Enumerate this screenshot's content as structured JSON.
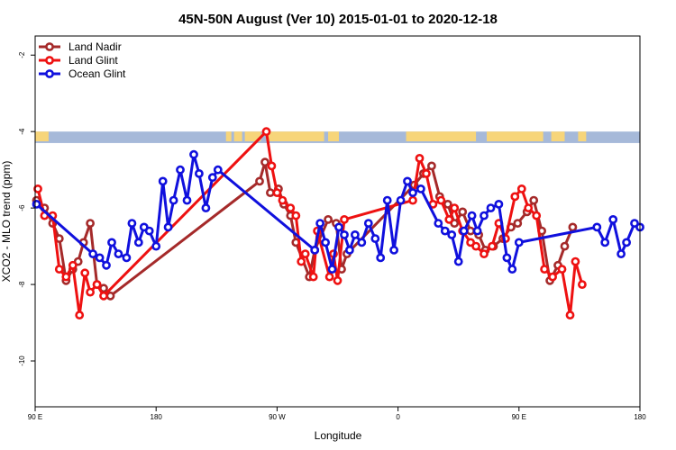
{
  "chart_data": {
    "type": "line",
    "title": "45N-50N August (Ver 10)   2015-01-01 to 2020-12-18",
    "xlabel": "Longitude",
    "ylabel": "XCO2 - MLO trend (ppm)",
    "x_ticks": [
      {
        "value": 90,
        "label": "90 E"
      },
      {
        "value": 180,
        "label": "180"
      },
      {
        "value": 270,
        "label": "90 W"
      },
      {
        "value": 360,
        "label": "0"
      },
      {
        "value": 450,
        "label": "90 E"
      },
      {
        "value": 540,
        "label": "180"
      }
    ],
    "y_ticks": [
      -2,
      -4,
      -6,
      -8,
      -10
    ],
    "xlim": [
      90,
      540
    ],
    "ylim": [
      -11.2,
      -1.5
    ],
    "grid": false,
    "legend": {
      "placement": "top-left"
    },
    "land_band": {
      "y_range": [
        -4.3,
        -4.0
      ],
      "land_color": "#f7d57a",
      "ocean_color": "#a6b9d9"
    },
    "series": [
      {
        "name": "Land Nadir",
        "color": "#a52a2a",
        "x": [
          91,
          97,
          103,
          108,
          113,
          118,
          122,
          126,
          131,
          136,
          141,
          146,
          257,
          261,
          265,
          271,
          275,
          280,
          284,
          294,
          298,
          308,
          314,
          318,
          322,
          372,
          379,
          385,
          391,
          397,
          402,
          408,
          414,
          420,
          425,
          431,
          438,
          444,
          449,
          456,
          461,
          467,
          473,
          479,
          484,
          490
        ],
        "y": [
          -5.8,
          -6.0,
          -6.4,
          -6.8,
          -7.9,
          -7.6,
          -7.4,
          -6.9,
          -6.4,
          -8.0,
          -8.1,
          -8.3,
          -5.3,
          -4.8,
          -5.6,
          -5.5,
          -5.9,
          -6.2,
          -6.9,
          -7.8,
          -7.1,
          -6.3,
          -6.4,
          -7.6,
          -7.2,
          -5.4,
          -5.1,
          -4.9,
          -5.7,
          -5.9,
          -6.4,
          -6.1,
          -6.6,
          -6.7,
          -7.1,
          -7.0,
          -6.8,
          -6.5,
          -6.4,
          -6.1,
          -5.8,
          -6.6,
          -7.9,
          -7.5,
          -7.0,
          -6.5
        ],
        "note": "values read off chart"
      },
      {
        "name": "Land Glint",
        "color": "#ee1111",
        "x": [
          92,
          97,
          103,
          108,
          113,
          118,
          123,
          127,
          131,
          136,
          141,
          262,
          266,
          270,
          274,
          280,
          284,
          288,
          291,
          297,
          300,
          309,
          312,
          315,
          320,
          371,
          376,
          381,
          386,
          392,
          398,
          402,
          408,
          414,
          418,
          424,
          430,
          435,
          440,
          447,
          452,
          457,
          463,
          469,
          475,
          482,
          488,
          492,
          497
        ],
        "y": [
          -5.5,
          -6.2,
          -6.2,
          -7.6,
          -7.8,
          -7.5,
          -8.8,
          -7.7,
          -8.2,
          -8.0,
          -8.3,
          -4.0,
          -4.9,
          -5.6,
          -5.8,
          -6.0,
          -6.2,
          -7.4,
          -7.2,
          -7.8,
          -6.6,
          -7.8,
          -7.2,
          -7.9,
          -6.3,
          -5.8,
          -4.7,
          -5.1,
          -5.9,
          -5.8,
          -6.3,
          -6.0,
          -6.6,
          -6.9,
          -7.0,
          -7.2,
          -7.0,
          -6.4,
          -6.8,
          -5.7,
          -5.5,
          -6.0,
          -6.2,
          -7.6,
          -7.8,
          -7.6,
          -8.8,
          -7.4,
          -8.0
        ],
        "note": "values read off chart"
      },
      {
        "name": "Ocean Glint",
        "color": "#1010dd",
        "x": [
          91,
          133,
          138,
          143,
          147,
          152,
          158,
          162,
          167,
          171,
          175,
          180,
          185,
          189,
          193,
          198,
          203,
          208,
          212,
          217,
          222,
          226,
          298,
          302,
          306,
          311,
          316,
          320,
          324,
          328,
          333,
          338,
          343,
          347,
          352,
          357,
          362,
          367,
          371,
          377,
          390,
          395,
          400,
          405,
          409,
          415,
          419,
          424,
          429,
          435,
          441,
          445,
          450,
          508,
          514,
          520,
          526,
          530,
          536,
          540
        ],
        "y": [
          -5.9,
          -7.2,
          -7.3,
          -7.5,
          -6.9,
          -7.2,
          -7.3,
          -6.4,
          -6.9,
          -6.5,
          -6.6,
          -7.0,
          -5.3,
          -6.5,
          -5.8,
          -5.0,
          -5.8,
          -4.6,
          -5.1,
          -6.0,
          -5.2,
          -5.0,
          -7.1,
          -6.4,
          -6.9,
          -7.6,
          -6.5,
          -6.7,
          -7.1,
          -6.7,
          -6.9,
          -6.4,
          -6.8,
          -7.3,
          -5.8,
          -7.1,
          -5.8,
          -5.3,
          -5.6,
          -5.5,
          -6.4,
          -6.6,
          -6.7,
          -7.4,
          -6.6,
          -6.2,
          -6.6,
          -6.2,
          -6.0,
          -5.9,
          -7.3,
          -7.6,
          -6.9,
          -6.5,
          -6.9,
          -6.3,
          -7.2,
          -6.9,
          -6.4,
          -6.5
        ],
        "note": "values read off chart"
      }
    ]
  }
}
